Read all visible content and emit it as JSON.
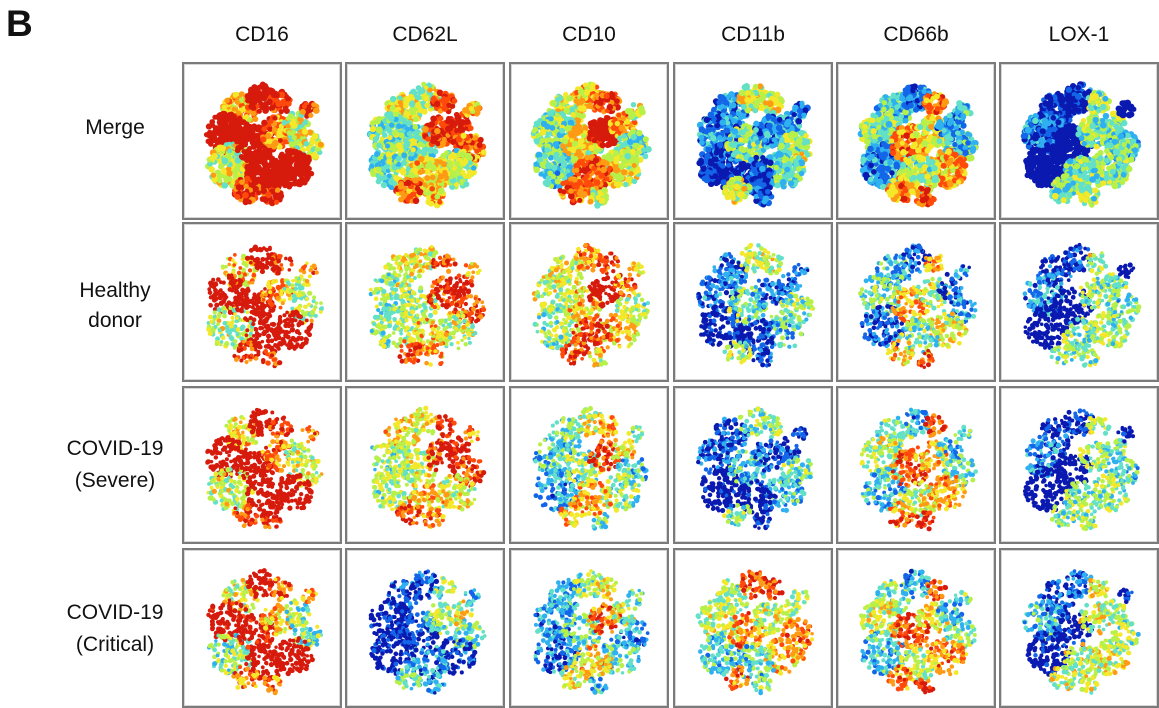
{
  "panel_label": "B",
  "columns": [
    "CD16",
    "CD62L",
    "CD10",
    "CD11b",
    "CD66b",
    "LOX-1"
  ],
  "rows": [
    {
      "line1": "Merge",
      "line2": ""
    },
    {
      "line1": "Healthy",
      "line2": "donor"
    },
    {
      "line1": "COVID-19",
      "line2": "(Severe)"
    },
    {
      "line1": "COVID-19",
      "line2": "(Critical)"
    }
  ],
  "colors": {
    "frame": "#7b7b7b",
    "colormap": [
      "#0a1ab0",
      "#1466e8",
      "#2fb0f0",
      "#62e0c8",
      "#b8f04a",
      "#f4e82a",
      "#ff9a14",
      "#ff4a0c",
      "#d61a0c"
    ]
  },
  "cell_intensity": [
    [
      0.86,
      0.74,
      0.7,
      0.4,
      0.56,
      0.22
    ],
    [
      0.82,
      0.78,
      0.76,
      0.36,
      0.48,
      0.24
    ],
    [
      0.84,
      0.8,
      0.58,
      0.3,
      0.62,
      0.24
    ],
    [
      0.74,
      0.34,
      0.5,
      0.68,
      0.62,
      0.32
    ]
  ]
}
